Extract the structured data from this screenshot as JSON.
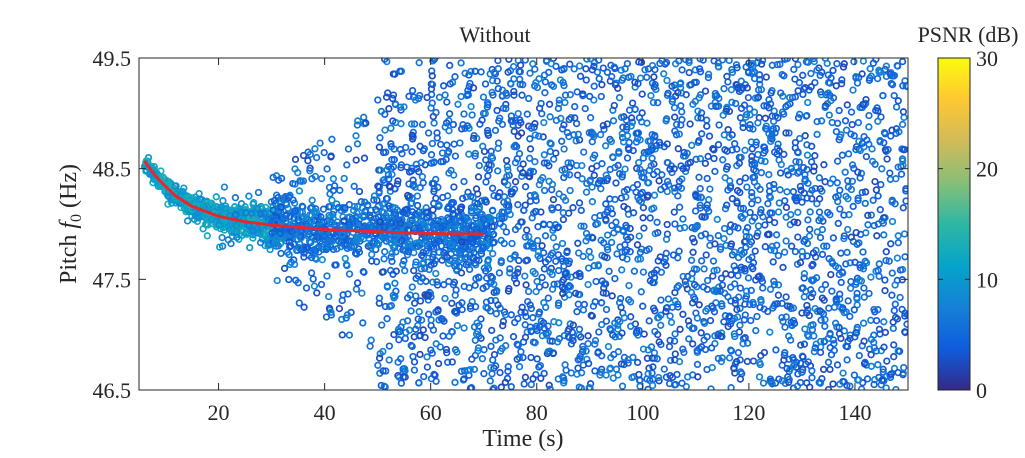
{
  "chart_data": {
    "type": "scatter",
    "title": "Without",
    "xlabel": "Time (s)",
    "ylabel_prefix": "Pitch ",
    "ylabel_symbol": "f",
    "ylabel_subscript": "0",
    "ylabel_suffix": " (Hz)",
    "xlim": [
      5,
      150
    ],
    "ylim": [
      46.5,
      49.5
    ],
    "xticks": [
      20,
      40,
      60,
      80,
      100,
      120,
      140
    ],
    "yticks": [
      46.5,
      47.5,
      48.5,
      49.5
    ],
    "colorbar": {
      "label": "PSNR (dB)",
      "range": [
        0,
        30
      ],
      "ticks": [
        0,
        10,
        20,
        30
      ],
      "colormap": "parula",
      "colormap_stops": [
        "#352a87",
        "#0f5cdd",
        "#1481d6",
        "#06a4ca",
        "#2eb7a4",
        "#87bf77",
        "#d1bb59",
        "#fec832",
        "#f9fb0e"
      ]
    },
    "scatter_description": {
      "marker": "open circle",
      "converging_phase": {
        "x_range": [
          6,
          32
        ],
        "start_y": 48.6,
        "end_y": 48.0,
        "psnr_range": [
          8,
          14
        ]
      },
      "transition_phase": {
        "x_range": [
          32,
          70
        ],
        "center_y": 47.95,
        "psnr_range": [
          3,
          9
        ]
      },
      "random_phase": {
        "x_range": [
          70,
          150
        ],
        "y_range": [
          46.5,
          49.5
        ],
        "psnr_range": [
          2,
          8
        ]
      }
    },
    "fit_curve": {
      "color": "#e8262b",
      "x": [
        6,
        8,
        10,
        12,
        15,
        20,
        25,
        30,
        35,
        40,
        45,
        50,
        55,
        60,
        65,
        70
      ],
      "y": [
        48.57,
        48.44,
        48.34,
        48.25,
        48.16,
        48.07,
        48.02,
        47.99,
        47.97,
        47.95,
        47.94,
        47.93,
        47.92,
        47.915,
        47.91,
        47.91
      ]
    }
  }
}
